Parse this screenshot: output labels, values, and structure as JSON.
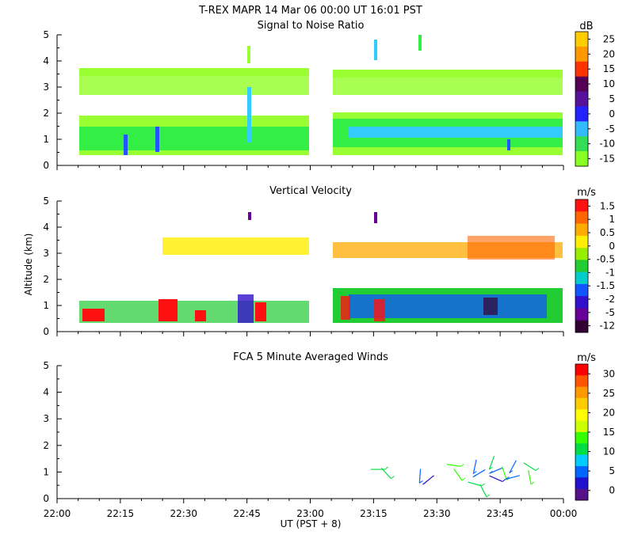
{
  "header": {
    "title": "T-REX   MAPR 14 Mar 06   00:00 UT   16:01   PST"
  },
  "colors": {
    "background": "#ffffff",
    "lime": "#99ff33",
    "green": "#33ee44",
    "cyan": "#33ccff",
    "blue": "#2255ff"
  },
  "chart_data": [
    {
      "type": "heatmap",
      "title": "Signal to Noise Ratio",
      "ylabel": "",
      "ylim": [
        0,
        5
      ],
      "yticks": [
        "0",
        "1",
        "2",
        "3",
        "4",
        "5"
      ],
      "xlim": [
        "22:00",
        "00:00"
      ],
      "data_gap": [
        "22:54",
        "23:01"
      ],
      "colorbar": {
        "unit": "dB",
        "labels": [
          "25",
          "20",
          "15",
          "10",
          "5",
          "0",
          "-5",
          "-10",
          "-15"
        ],
        "colors": [
          "#ffcc00",
          "#ff9900",
          "#ff3300",
          "#550055",
          "#551199",
          "#2222ff",
          "#33bbff",
          "#33dd55",
          "#88ff22"
        ]
      }
    },
    {
      "type": "heatmap",
      "title": "Vertical Velocity",
      "ylabel": "Altitude (km)",
      "ylim": [
        0,
        5
      ],
      "yticks": [
        "0",
        "1",
        "2",
        "3",
        "4",
        "5"
      ],
      "xlim": [
        "22:00",
        "00:00"
      ],
      "data_gap": [
        "22:54",
        "23:01"
      ],
      "colorbar": {
        "unit": "m/s",
        "labels": [
          "1.5",
          "1",
          "0.5",
          "0",
          "-0.5",
          "-1",
          "-1.5",
          "-2",
          "-5",
          "-12"
        ],
        "colors": [
          "#ff1111",
          "#ff6600",
          "#ffaa00",
          "#ffee00",
          "#99ee00",
          "#22cc33",
          "#00cccc",
          "#1155ff",
          "#3311cc",
          "#660099",
          "#330033"
        ]
      }
    },
    {
      "type": "scatter",
      "title": "FCA 5 Minute Averaged Winds",
      "ylabel": "",
      "ylim": [
        0,
        5
      ],
      "yticks": [
        "0",
        "1",
        "2",
        "3",
        "4",
        "5"
      ],
      "xlabel": "UT  (PST + 8)",
      "xticks": [
        "22:00",
        "22:15",
        "22:30",
        "22:45",
        "23:00",
        "23:15",
        "23:30",
        "23:45",
        "00:00"
      ],
      "colorbar": {
        "unit": "m/s",
        "labels": [
          "30",
          "25",
          "20",
          "15",
          "10",
          "5",
          "0"
        ],
        "colors": [
          "#ff0000",
          "#ff5500",
          "#ff9900",
          "#ffcc00",
          "#ffff00",
          "#ccff00",
          "#33ff00",
          "#00dd44",
          "#00ccff",
          "#0066ff",
          "#2211cc",
          "#551188"
        ]
      },
      "wind_barbs": [
        {
          "time_min": 76,
          "alt_km": 1.1,
          "speed": 13
        },
        {
          "time_min": 78,
          "alt_km": 0.95,
          "speed": 12
        },
        {
          "time_min": 86,
          "alt_km": 0.85,
          "speed": 6
        },
        {
          "time_min": 88,
          "alt_km": 0.7,
          "speed": 4
        },
        {
          "time_min": 94,
          "alt_km": 1.25,
          "speed": 15
        },
        {
          "time_min": 95,
          "alt_km": 0.9,
          "speed": 14
        },
        {
          "time_min": 99,
          "alt_km": 1.2,
          "speed": 7
        },
        {
          "time_min": 100,
          "alt_km": 0.95,
          "speed": 5
        },
        {
          "time_min": 99,
          "alt_km": 0.55,
          "speed": 11
        },
        {
          "time_min": 101,
          "alt_km": 0.3,
          "speed": 12
        },
        {
          "time_min": 103,
          "alt_km": 1.35,
          "speed": 13
        },
        {
          "time_min": 104,
          "alt_km": 1.05,
          "speed": 6
        },
        {
          "time_min": 104,
          "alt_km": 0.75,
          "speed": 3
        },
        {
          "time_min": 106,
          "alt_km": 0.95,
          "speed": 14
        },
        {
          "time_min": 108,
          "alt_km": 1.2,
          "speed": 6
        },
        {
          "time_min": 108,
          "alt_km": 0.8,
          "speed": 5
        },
        {
          "time_min": 112,
          "alt_km": 1.2,
          "speed": 12
        },
        {
          "time_min": 112,
          "alt_km": 0.8,
          "speed": 14
        }
      ]
    }
  ]
}
